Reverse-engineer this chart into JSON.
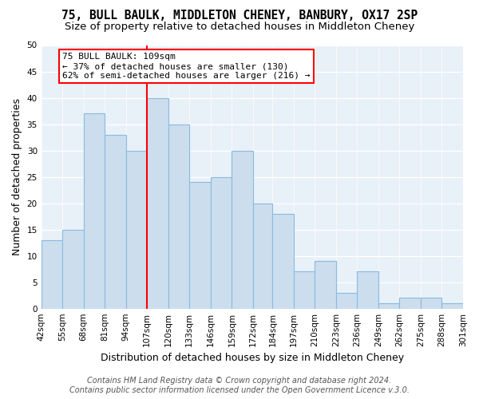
{
  "title": "75, BULL BAULK, MIDDLETON CHENEY, BANBURY, OX17 2SP",
  "subtitle": "Size of property relative to detached houses in Middleton Cheney",
  "xlabel": "Distribution of detached houses by size in Middleton Cheney",
  "ylabel": "Number of detached properties",
  "bar_edges": [
    42,
    55,
    68,
    81,
    94,
    107,
    120,
    133,
    146,
    159,
    172,
    184,
    197,
    210,
    223,
    236,
    249,
    262,
    275,
    288,
    301
  ],
  "bar_heights": [
    13,
    15,
    37,
    33,
    30,
    40,
    35,
    24,
    25,
    30,
    20,
    18,
    7,
    9,
    3,
    7,
    1,
    2,
    2,
    1
  ],
  "bar_color": "#ccdded",
  "bar_edgecolor": "#88bbe0",
  "vline_x": 107,
  "vline_color": "red",
  "ylim": [
    0,
    50
  ],
  "yticks": [
    0,
    5,
    10,
    15,
    20,
    25,
    30,
    35,
    40,
    45,
    50
  ],
  "annotation_title": "75 BULL BAULK: 109sqm",
  "annotation_line1": "← 37% of detached houses are smaller (130)",
  "annotation_line2": "62% of semi-detached houses are larger (216) →",
  "annotation_box_color": "white",
  "annotation_box_edgecolor": "red",
  "footer_line1": "Contains HM Land Registry data © Crown copyright and database right 2024.",
  "footer_line2": "Contains public sector information licensed under the Open Government Licence v.3.0.",
  "tick_labels": [
    "42sqm",
    "55sqm",
    "68sqm",
    "81sqm",
    "94sqm",
    "107sqm",
    "120sqm",
    "133sqm",
    "146sqm",
    "159sqm",
    "172sqm",
    "184sqm",
    "197sqm",
    "210sqm",
    "223sqm",
    "236sqm",
    "249sqm",
    "262sqm",
    "275sqm",
    "288sqm",
    "301sqm"
  ],
  "background_color": "#ffffff",
  "plot_bg_color": "#e8f0f8",
  "grid_color": "#ffffff",
  "title_fontsize": 10.5,
  "subtitle_fontsize": 9.5,
  "axis_label_fontsize": 9,
  "tick_fontsize": 7.5,
  "annotation_fontsize": 8,
  "footer_fontsize": 7
}
